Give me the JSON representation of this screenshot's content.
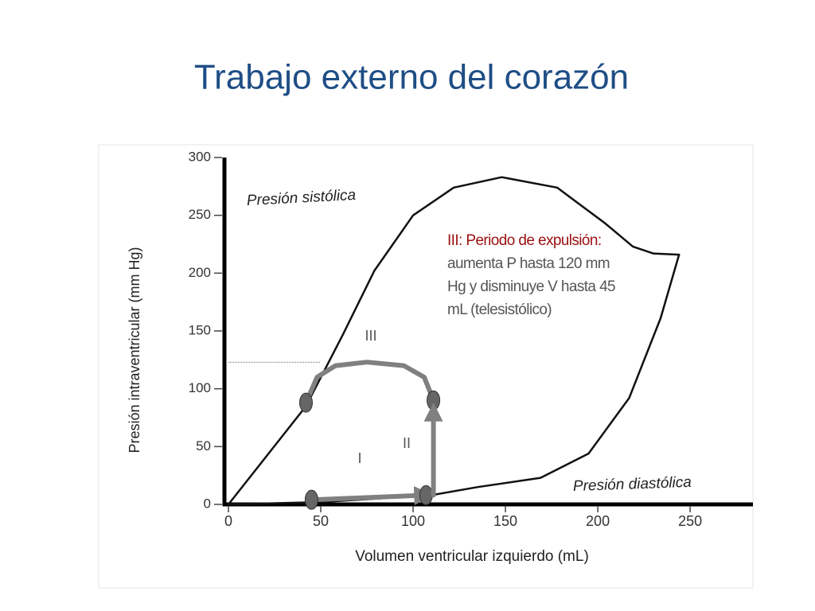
{
  "chart_data": {
    "type": "line",
    "title": "Trabajo externo del corazón",
    "xlabel": "Volumen ventricular izquierdo (mL)",
    "ylabel": "Presión intraventricular (mm Hg)",
    "xlim": [
      0,
      284
    ],
    "ylim": [
      0,
      300
    ],
    "xticks": [
      0,
      50,
      100,
      150,
      200,
      250
    ],
    "yticks": [
      0,
      50,
      100,
      150,
      200,
      250,
      300
    ],
    "series": [
      {
        "name": "Presión sistólica",
        "color": "#111111",
        "x": [
          0,
          42,
          62,
          79,
          100,
          122,
          148,
          178,
          204,
          219,
          230,
          244
        ],
        "values": [
          0,
          85,
          147,
          202,
          250,
          274,
          283,
          274,
          243,
          223,
          217,
          216
        ]
      },
      {
        "name": "Presión diastólica",
        "color": "#111111",
        "x": [
          0,
          50,
          110,
          135,
          169,
          195,
          217,
          234,
          244
        ],
        "values": [
          0,
          2,
          8,
          15,
          23,
          44,
          92,
          161,
          216
        ]
      },
      {
        "color": "#808080",
        "markers": true,
        "x": [
          42,
          48,
          58,
          75,
          95,
          106,
          111
        ],
        "values": [
          88,
          110,
          120,
          123,
          120,
          110,
          90
        ]
      },
      {
        "color": "#808080",
        "markers": true,
        "arrow": true,
        "x": [
          45,
          107
        ],
        "values": [
          4,
          8
        ]
      },
      {
        "color": "#808080",
        "arrow": true,
        "x": [
          111,
          111
        ],
        "values": [
          8,
          82
        ]
      }
    ],
    "reference_y": 123,
    "phase_labels": [
      "I",
      "II",
      "III"
    ],
    "annotation": {
      "highlight": "III: Periodo de expulsión:",
      "text": "aumenta P hasta 120 mm Hg y disminuye V hasta 45 mL (telesistólico)"
    }
  }
}
